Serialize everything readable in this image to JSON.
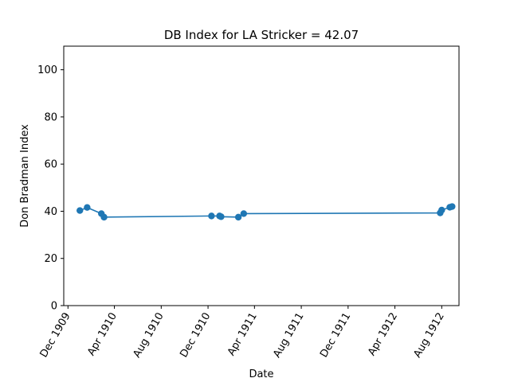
{
  "chart_data": {
    "type": "line",
    "title": "DB Index for LA Stricker = 42.07",
    "xlabel": "Date",
    "ylabel": "Don Bradman Index",
    "ylim": [
      0,
      110
    ],
    "yticks": [
      0,
      20,
      40,
      60,
      80,
      100
    ],
    "x_ticks": [
      {
        "date": "1909-12-01",
        "label": "Dec 1909"
      },
      {
        "date": "1910-04-01",
        "label": "Apr 1910"
      },
      {
        "date": "1910-08-01",
        "label": "Aug 1910"
      },
      {
        "date": "1910-12-01",
        "label": "Dec 1910"
      },
      {
        "date": "1911-04-01",
        "label": "Apr 1911"
      },
      {
        "date": "1911-08-01",
        "label": "Aug 1911"
      },
      {
        "date": "1911-12-01",
        "label": "Dec 1911"
      },
      {
        "date": "1912-04-01",
        "label": "Apr 1912"
      },
      {
        "date": "1912-08-01",
        "label": "Aug 1912"
      }
    ],
    "xlim": [
      "1909-11-20",
      "1912-09-15"
    ],
    "grid": false,
    "series": [
      {
        "color": "#1f77b4",
        "points": [
          {
            "x": "1910-01-01",
            "y": 40.3
          },
          {
            "x": "1910-01-20",
            "y": 41.6
          },
          {
            "x": "1910-02-26",
            "y": 39.0
          },
          {
            "x": "1910-03-05",
            "y": 37.5
          },
          {
            "x": "1910-12-10",
            "y": 38.0
          },
          {
            "x": "1910-12-31",
            "y": 38.0
          },
          {
            "x": "1911-01-04",
            "y": 37.7
          },
          {
            "x": "1911-02-18",
            "y": 37.5
          },
          {
            "x": "1911-03-04",
            "y": 39.0
          },
          {
            "x": "1912-07-28",
            "y": 39.3
          },
          {
            "x": "1912-08-01",
            "y": 40.5
          },
          {
            "x": "1912-08-22",
            "y": 41.7
          },
          {
            "x": "1912-08-28",
            "y": 42.0
          }
        ]
      }
    ]
  }
}
